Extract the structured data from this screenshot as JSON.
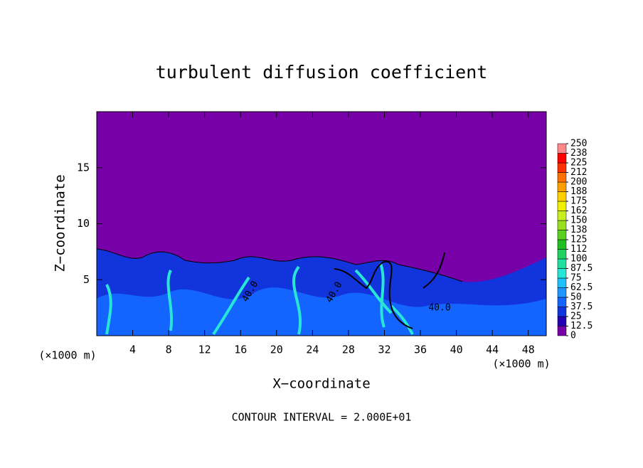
{
  "chart_data": {
    "type": "contour",
    "title": "turbulent diffusion coefficient",
    "x_label": "X−coordinate",
    "y_label": "Z−coordinate",
    "x_unit_left": "(×1000 m)",
    "x_unit_right": "(×1000 m)",
    "footnote": "CONTOUR INTERVAL = 2.000E+01",
    "xlim": [
      0,
      50
    ],
    "ylim": [
      0,
      20
    ],
    "xticks": [
      4,
      8,
      12,
      16,
      20,
      24,
      28,
      32,
      36,
      40,
      44,
      48
    ],
    "yticks": [
      5,
      10,
      15
    ],
    "contour_labels": [
      "40.0",
      "40.0",
      "40.0"
    ],
    "colorbar": {
      "ticks": [
        0,
        12.5,
        25,
        37.5,
        50,
        62.5,
        75,
        87.5,
        100,
        {
          "value": 112.5,
          "label": "112"
        },
        125,
        {
          "value": 137.5,
          "label": "138"
        },
        150,
        {
          "value": 162.5,
          "label": "162"
        },
        175,
        {
          "value": 187.5,
          "label": "188"
        },
        200,
        {
          "value": 212.5,
          "label": "212"
        },
        225,
        {
          "value": 237.5,
          "label": "238"
        },
        250
      ],
      "colors": [
        "#7800a8",
        "#2400b4",
        "#1234dc",
        "#1464ff",
        "#1e96ff",
        "#20c0ff",
        "#28e6d6",
        "#20e0a0",
        "#20d060",
        "#20c020",
        "#58d020",
        "#96e020",
        "#c8f020",
        "#f0f000",
        "#ffd000",
        "#ffa000",
        "#ff7000",
        "#ff3000",
        "#ff0000",
        "#ff8888"
      ]
    }
  }
}
